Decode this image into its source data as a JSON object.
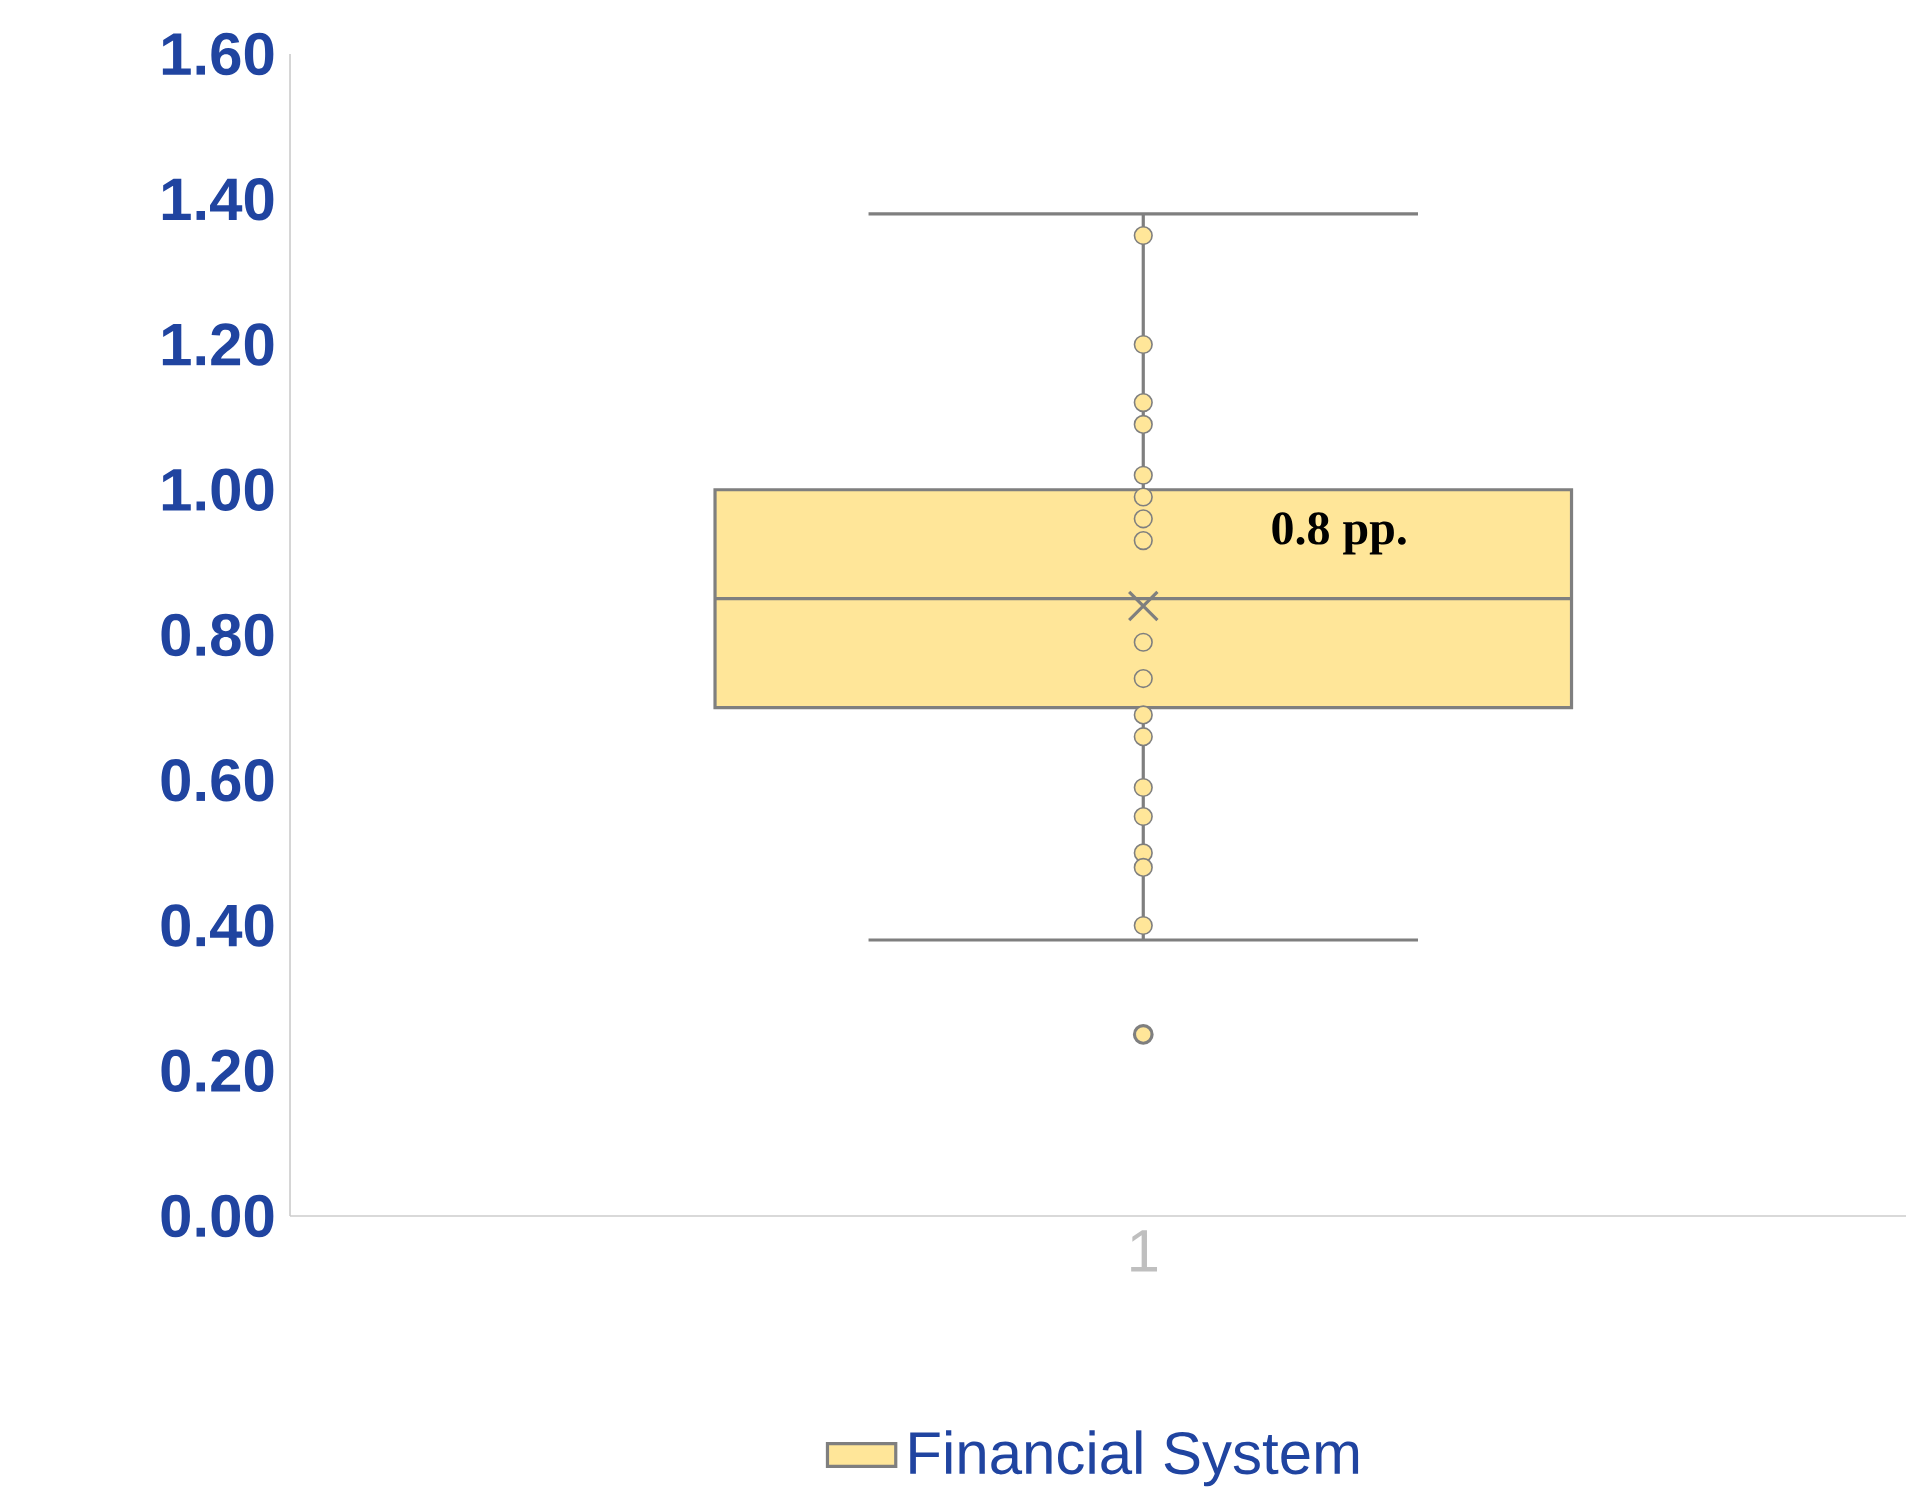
{
  "chart_data": {
    "type": "box",
    "categories": [
      "1"
    ],
    "ylim": [
      0,
      1.6
    ],
    "yticks": [
      {
        "value": 0,
        "label": "0.00"
      },
      {
        "value": 0.2,
        "label": "0.20"
      },
      {
        "value": 0.4,
        "label": "0.40"
      },
      {
        "value": 0.6,
        "label": "0.60"
      },
      {
        "value": 0.8,
        "label": "0.80"
      },
      {
        "value": 1.0,
        "label": "1.00"
      },
      {
        "value": 1.2,
        "label": "1.20"
      },
      {
        "value": 1.4,
        "label": "1.40"
      },
      {
        "value": 1.6,
        "label": "1.60"
      }
    ],
    "series": [
      {
        "name": "Financial System",
        "color": "#ffe699",
        "boxes": [
          {
            "low": 0.38,
            "q1": 0.7,
            "median": 0.85,
            "q3": 1.0,
            "high": 1.38,
            "mean": 0.84,
            "outliers": [
              0.25
            ]
          }
        ]
      },
      {
        "type": "scatter",
        "color": "#ffe699",
        "x": [
          "1",
          "1",
          "1",
          "1",
          "1",
          "1",
          "1",
          "1",
          "1",
          "1",
          "1",
          "1",
          "1",
          "1",
          "1",
          "1",
          "1"
        ],
        "values": [
          1.35,
          1.2,
          1.12,
          1.09,
          1.02,
          0.99,
          0.96,
          0.93,
          0.79,
          0.74,
          0.69,
          0.66,
          0.59,
          0.55,
          0.5,
          0.48,
          0.4
        ]
      }
    ],
    "marker": "circle",
    "grid": false,
    "legend": "bottom",
    "annotations": [
      "0.8 pp."
    ]
  }
}
